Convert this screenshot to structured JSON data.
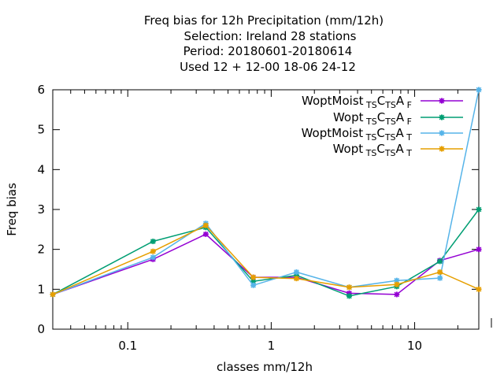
{
  "chart_data": {
    "type": "line",
    "title_lines": [
      "Freq bias  for 12h Precipitation (mm/12h)",
      "Selection: Ireland     28 stations",
      "Period: 20180601-20180614",
      "Used  12 + 12-00 18-06 24-12"
    ],
    "xlabel": "classes mm/12h",
    "ylabel": "Freq bias",
    "x_scale": "log",
    "xlim": [
      0.03,
      28
    ],
    "ylim": [
      0,
      6
    ],
    "x_ticks": [
      0.1,
      1,
      10
    ],
    "x_tick_labels": [
      "0.1",
      "1",
      "10"
    ],
    "y_ticks": [
      0,
      1,
      2,
      3,
      4,
      5,
      6
    ],
    "y_tick_labels": [
      "0",
      "1",
      "2",
      "3",
      "4",
      "5",
      "6"
    ],
    "grid": false,
    "legend_position": "top-right",
    "series": [
      {
        "name": "WoptMoist",
        "sub": [
          "TS",
          "TS",
          "F"
        ],
        "letters": [
          "C",
          "A"
        ],
        "color": "#9400d3",
        "x": [
          0.03,
          0.15,
          0.35,
          0.75,
          1.5,
          3.5,
          7.5,
          15,
          28
        ],
        "y": [
          0.87,
          1.75,
          2.38,
          1.3,
          1.3,
          0.9,
          0.87,
          1.72,
          2.0
        ]
      },
      {
        "name": "Wopt",
        "sub": [
          "TS",
          "TS",
          "F"
        ],
        "letters": [
          "C",
          "A"
        ],
        "color": "#009e73",
        "x": [
          0.03,
          0.15,
          0.35,
          0.75,
          1.5,
          3.5,
          7.5,
          15,
          28
        ],
        "y": [
          0.87,
          2.2,
          2.55,
          1.2,
          1.35,
          0.83,
          1.07,
          1.7,
          3.0
        ]
      },
      {
        "name": "WoptMoist",
        "sub": [
          "TS",
          "TS",
          "T"
        ],
        "letters": [
          "C",
          "A"
        ],
        "color": "#56b4e9",
        "x": [
          0.03,
          0.15,
          0.35,
          0.75,
          1.5,
          3.5,
          7.5,
          15,
          28
        ],
        "y": [
          0.87,
          1.8,
          2.65,
          1.1,
          1.43,
          1.05,
          1.22,
          1.28,
          6.0
        ]
      },
      {
        "name": "Wopt",
        "sub": [
          "TS",
          "TS",
          "T"
        ],
        "letters": [
          "C",
          "A"
        ],
        "color": "#e69f00",
        "x": [
          0.03,
          0.15,
          0.35,
          0.75,
          1.5,
          3.5,
          7.5,
          15,
          28
        ],
        "y": [
          0.87,
          1.95,
          2.6,
          1.3,
          1.27,
          1.05,
          1.12,
          1.43,
          1.0
        ]
      }
    ]
  }
}
